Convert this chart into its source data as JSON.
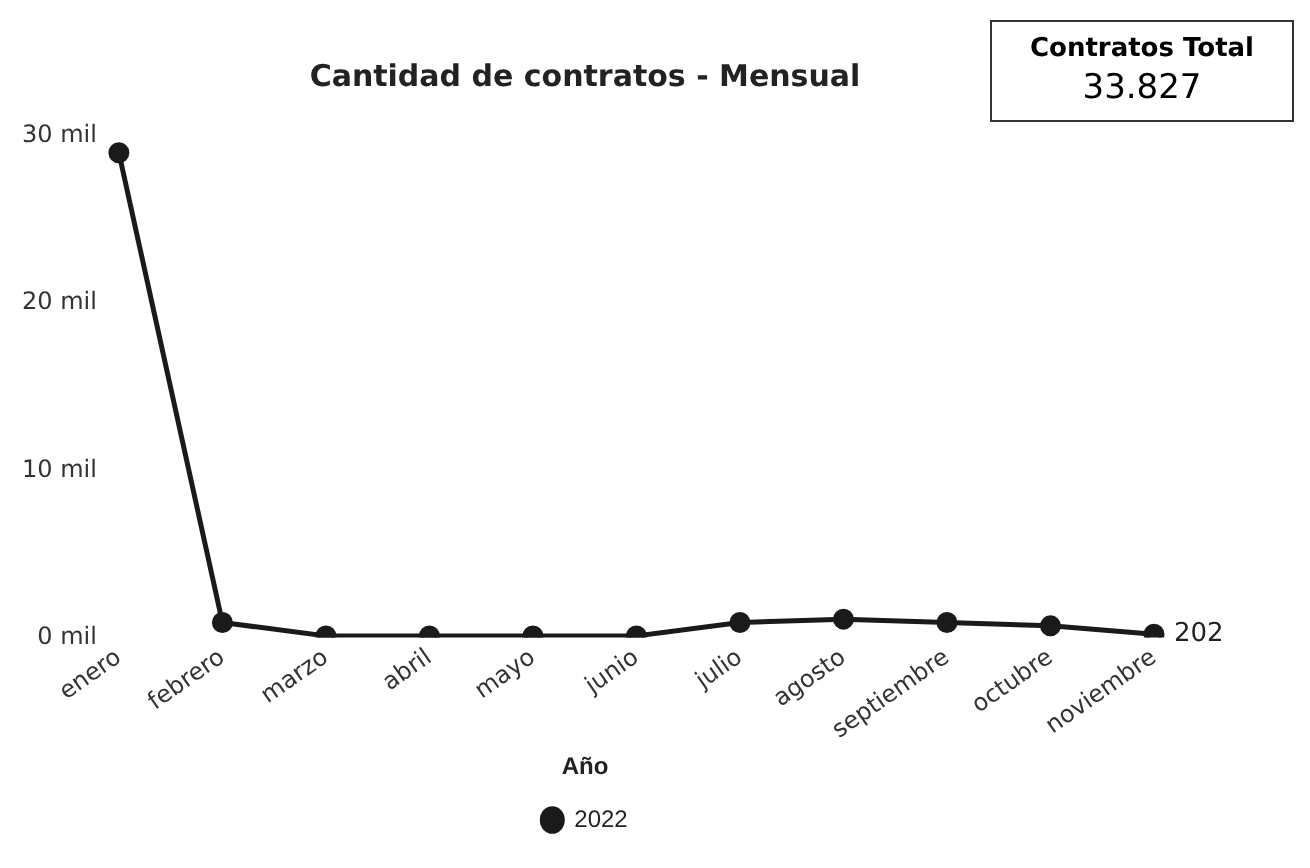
{
  "chart_data": {
    "type": "line",
    "title": "Cantidad de contratos - Mensual",
    "legend_title": "Año",
    "annotations": [
      "Contratos Total",
      "33.827",
      {
        "text": "202",
        "x": "noviembre",
        "y": 0.2
      }
    ],
    "categories": [
      "enero",
      "febrero",
      "marzo",
      "abril",
      "mayo",
      "junio",
      "julio",
      "agosto",
      "septiembre",
      "octubre",
      "noviembre"
    ],
    "series": [
      {
        "name": "2022",
        "color": "#1a1a1a",
        "values": [
          29,
          0.9,
          0.1,
          0.1,
          0.1,
          0.1,
          0.9,
          1.1,
          0.9,
          0.7,
          0.2
        ]
      }
    ],
    "ylim": [
      0,
      30
    ],
    "yticks": [
      {
        "value": 0,
        "label": "0 mil"
      },
      {
        "value": 10,
        "label": "10 mil"
      },
      {
        "value": 20,
        "label": "20 mil"
      },
      {
        "value": 30,
        "label": "30 mil"
      }
    ],
    "grid": false,
    "legend": "bottom",
    "marker": "circle",
    "line_style": "solid"
  }
}
